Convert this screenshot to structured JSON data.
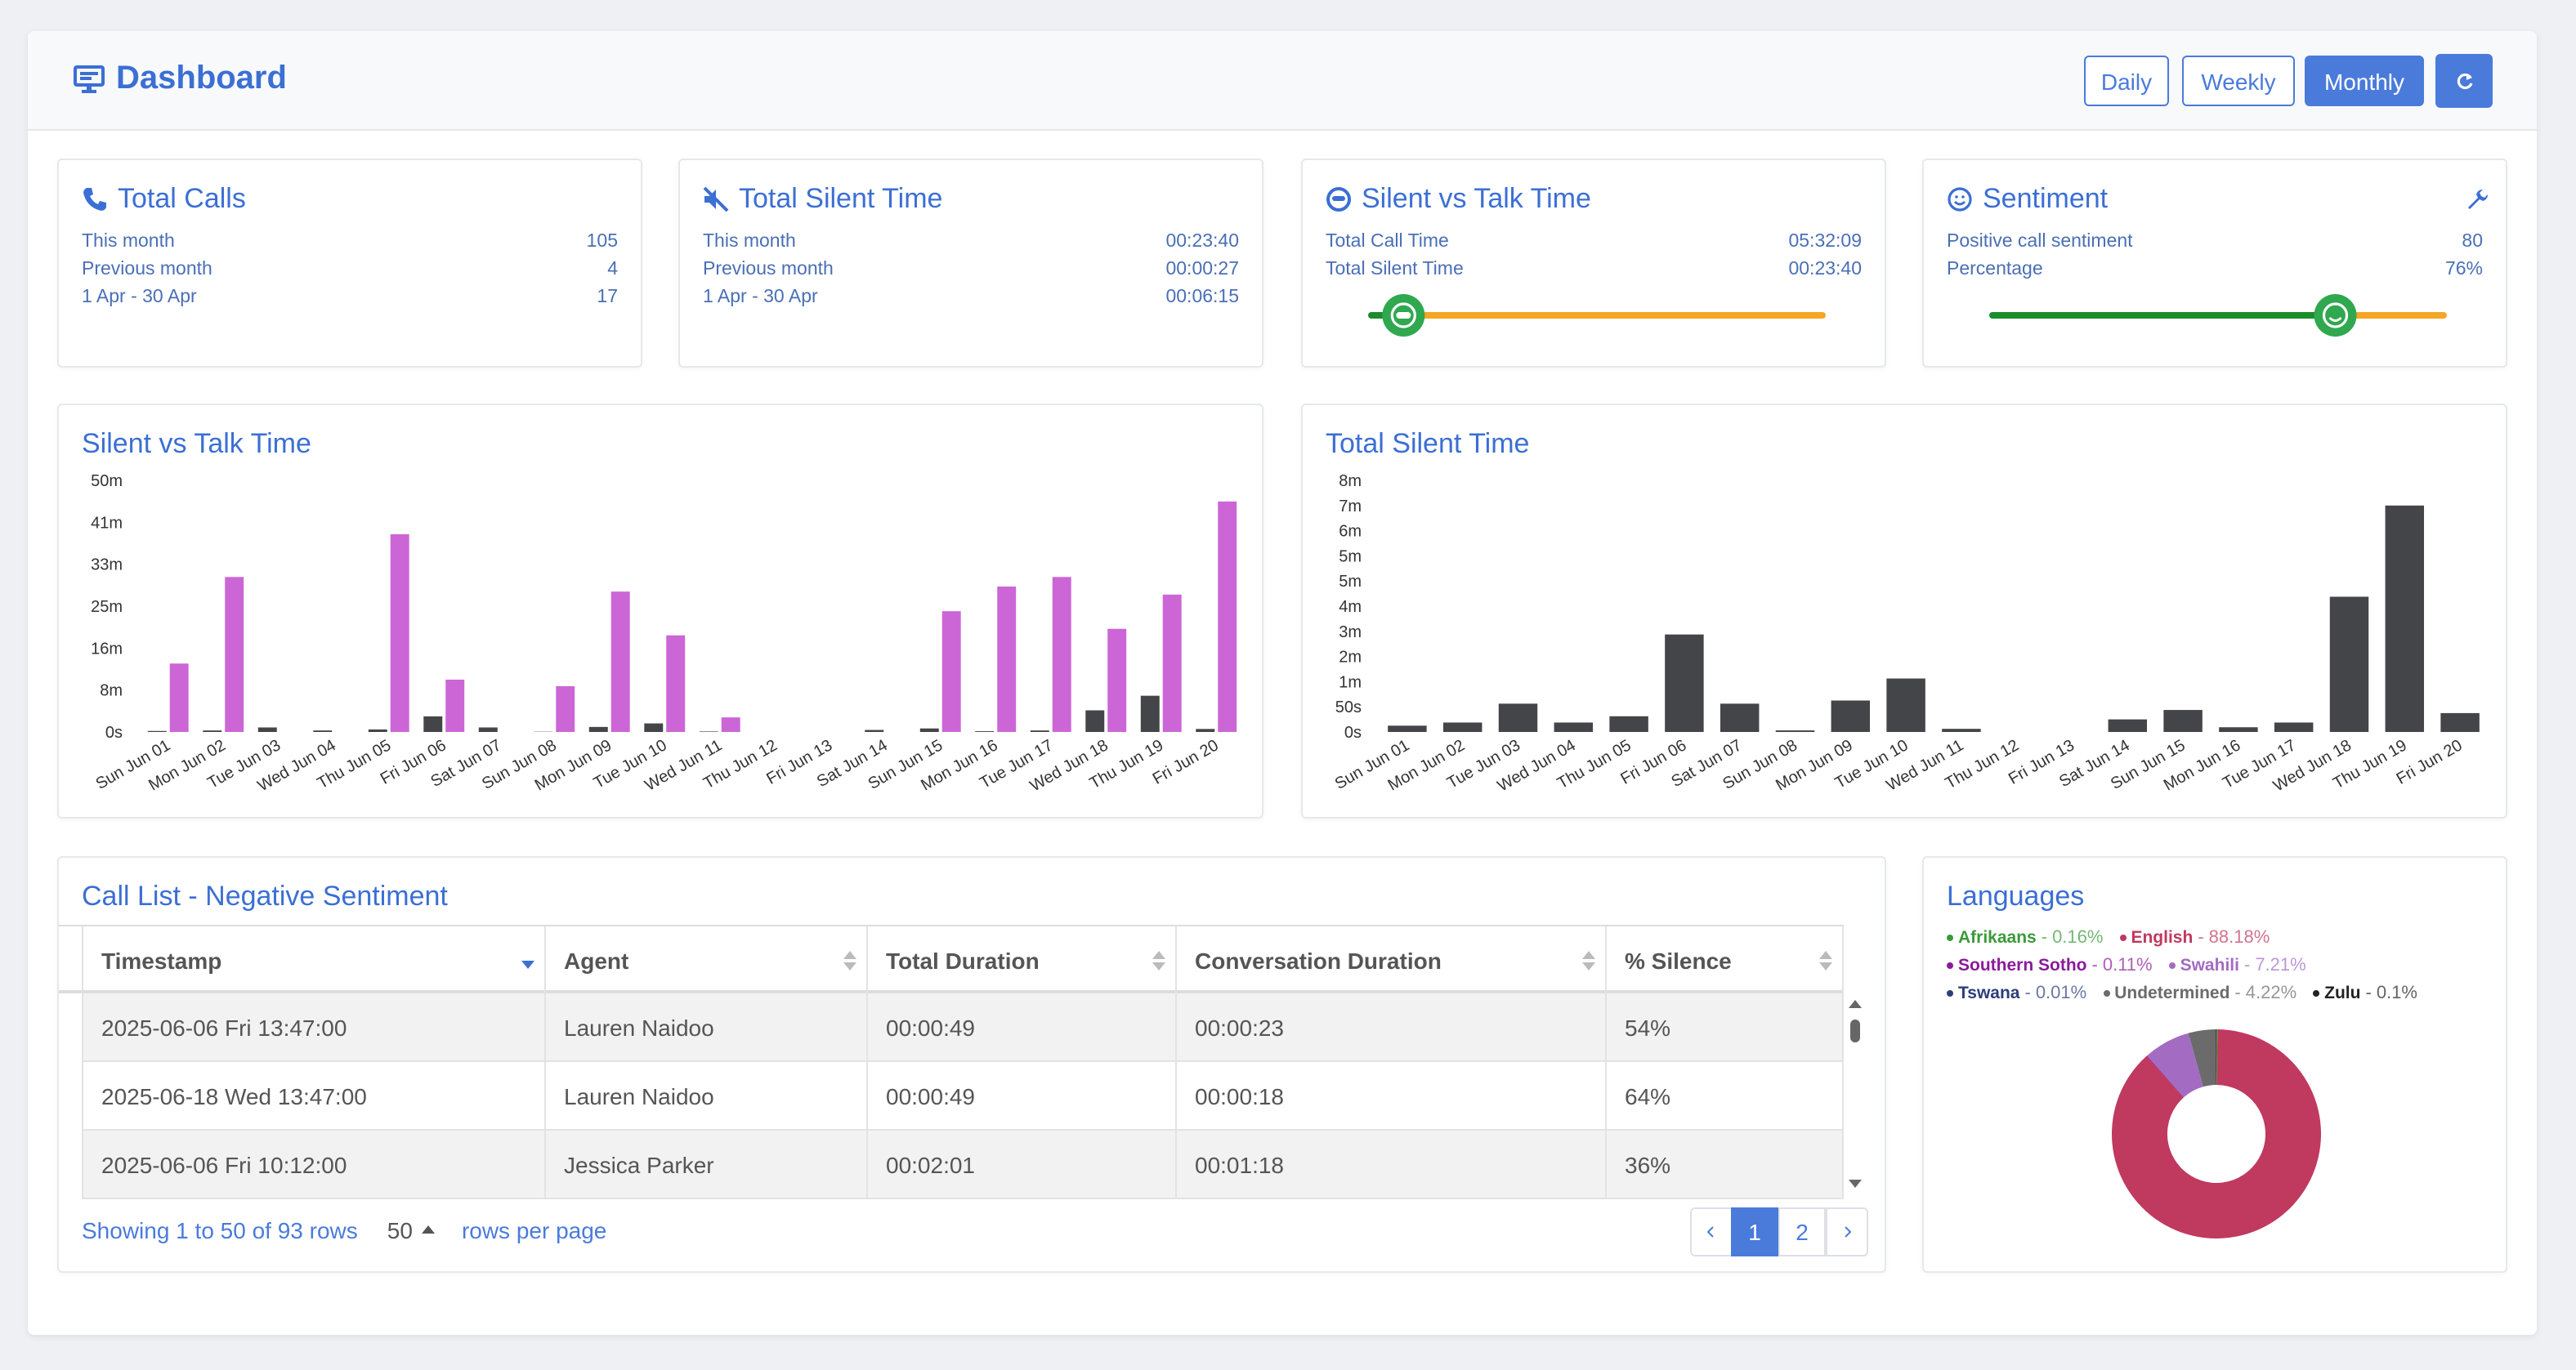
{
  "header": {
    "title": "Dashboard",
    "buttons": [
      "Daily",
      "Weekly",
      "Monthly"
    ]
  },
  "cards": [
    {
      "title": "Total Calls",
      "rows": [
        {
          "label": "This month",
          "value": 105
        },
        {
          "label": "Previous month",
          "value": 4
        },
        {
          "label": "1 Apr - 30 Apr",
          "value": 17
        }
      ]
    },
    {
      "title": "Total Silent Time",
      "rows": [
        {
          "label": "This month",
          "value": "00:23:40"
        },
        {
          "label": "Previous month",
          "value": "00:00:27"
        },
        {
          "label": "1 Apr - 30 Apr",
          "value": "00:06:15"
        }
      ]
    },
    {
      "title": "Silent vs Talk Time",
      "rows": [
        {
          "label": "Total Call Time",
          "value": "05:32:09"
        },
        {
          "label": "Total Silent Time",
          "value": "00:23:40"
        }
      ]
    },
    {
      "title": "Sentiment",
      "rows": [
        {
          "label": "Positive call sentiment",
          "value": 80
        },
        {
          "label": "Percentage",
          "value": 76,
          "value_label": "76%"
        }
      ]
    }
  ],
  "chart_data": [
    {
      "type": "bar",
      "title": "Silent vs Talk Time",
      "categories": [
        "Sun Jun 01",
        "Mon Jun 02",
        "Tue Jun 03",
        "Wed Jun 04",
        "Thu Jun 05",
        "Fri Jun 06",
        "Sat Jun 07",
        "Sun Jun 08",
        "Mon Jun 09",
        "Tue Jun 10",
        "Wed Jun 11",
        "Thu Jun 12",
        "Fri Jun 13",
        "Sat Jun 14",
        "Sun Jun 15",
        "Mon Jun 16",
        "Tue Jun 17",
        "Wed Jun 18",
        "Thu Jun 19",
        "Fri Jun 20"
      ],
      "series": [
        {
          "color": "#444548",
          "values": [
            0.2,
            0.3,
            0.9,
            0.3,
            0.5,
            3.1,
            0.9,
            0.05,
            1.0,
            1.7,
            0.1,
            0,
            0,
            0.4,
            0.7,
            0.15,
            0.3,
            4.3,
            7.2,
            0.6
          ]
        },
        {
          "color": "#cc66d6",
          "values": [
            13.6,
            30.8,
            0,
            0,
            39.3,
            10.4,
            0,
            9.1,
            27.9,
            19.2,
            2.9,
            0,
            0,
            0,
            24,
            28.9,
            30.8,
            20.5,
            27.3,
            45.8
          ]
        }
      ],
      "ylim": [
        0,
        50
      ],
      "yticks": [
        {
          "value": 0,
          "label": "0s"
        },
        {
          "value": 8.33,
          "label": "8m"
        },
        {
          "value": 16.67,
          "label": "16m"
        },
        {
          "value": 25,
          "label": "25m"
        },
        {
          "value": 33.33,
          "label": "33m"
        },
        {
          "value": 41.67,
          "label": "41m"
        },
        {
          "value": 50,
          "label": "50m"
        }
      ]
    },
    {
      "type": "bar",
      "title": "Total Silent Time",
      "categories": [
        "Sun Jun 01",
        "Mon Jun 02",
        "Tue Jun 03",
        "Wed Jun 04",
        "Thu Jun 05",
        "Fri Jun 06",
        "Sat Jun 07",
        "Sun Jun 08",
        "Mon Jun 09",
        "Tue Jun 10",
        "Wed Jun 11",
        "Thu Jun 12",
        "Fri Jun 13",
        "Sat Jun 14",
        "Sun Jun 15",
        "Mon Jun 16",
        "Tue Jun 17",
        "Wed Jun 18",
        "Thu Jun 19",
        "Fri Jun 20"
      ],
      "series": [
        {
          "color": "#444548",
          "values": [
            0.2,
            0.3,
            0.9,
            0.3,
            0.5,
            3.1,
            0.9,
            0.05,
            1.0,
            1.7,
            0.1,
            0,
            0,
            0.4,
            0.7,
            0.15,
            0.3,
            4.3,
            7.2,
            0.6
          ]
        }
      ],
      "ylim": [
        0,
        8
      ],
      "yticks": [
        {
          "value": 0,
          "label": "0s"
        },
        {
          "value": 0.8,
          "label": "50s"
        },
        {
          "value": 1.6,
          "label": "1m"
        },
        {
          "value": 2.4,
          "label": "2m"
        },
        {
          "value": 3.2,
          "label": "3m"
        },
        {
          "value": 4,
          "label": "4m"
        },
        {
          "value": 4.8,
          "label": "5m"
        },
        {
          "value": 5.6,
          "label": "5m"
        },
        {
          "value": 6.4,
          "label": "6m"
        },
        {
          "value": 7.2,
          "label": "7m"
        },
        {
          "value": 8,
          "label": "8m"
        }
      ]
    },
    {
      "type": "pie",
      "title": "Languages",
      "categories": [
        "Afrikaans",
        "English",
        "Southern Sotho",
        "Swahili",
        "Tswana",
        "Undetermined",
        "Zulu"
      ],
      "values": [
        0.16,
        88.18,
        0.11,
        7.21,
        0.01,
        4.22,
        0.1
      ],
      "value_labels": [
        "0.16%",
        "88.18%",
        "0.11%",
        "7.21%",
        "0.01%",
        "4.22%",
        "0.1%"
      ],
      "colors": [
        "#3a9a3a",
        "#c0395f",
        "#8b1a9a",
        "#a36bc2",
        "#2c3e7a",
        "#6b6b6b",
        "#222222"
      ]
    }
  ],
  "table": {
    "title": "Call List - Negative Sentiment",
    "columns": [
      "Timestamp",
      "Agent",
      "Total Duration",
      "Conversation Duration",
      "% Silence"
    ],
    "rows": [
      [
        "2025-06-06 Fri 13:47:00",
        "Lauren Naidoo",
        "00:00:49",
        "00:00:23",
        "54%"
      ],
      [
        "2025-06-18 Wed 13:47:00",
        "Lauren Naidoo",
        "00:00:49",
        "00:00:18",
        "64%"
      ],
      [
        "2025-06-06 Fri 10:12:00",
        "Jessica Parker",
        "00:02:01",
        "00:01:18",
        "36%"
      ]
    ],
    "footer": {
      "showing": "Showing 1 to 50 of 93 rows",
      "page_size": "50",
      "per_page": "rows per page",
      "pages": [
        "1",
        "2"
      ]
    }
  }
}
